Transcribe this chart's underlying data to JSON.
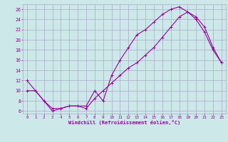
{
  "xlabel": "Windchill (Refroidissement éolien,°C)",
  "bg_color": "#cce8e8",
  "line_color": "#990099",
  "grid_color": "#aaaacc",
  "xlim": [
    -0.5,
    23.5
  ],
  "ylim": [
    5.5,
    27.0
  ],
  "xticks": [
    0,
    1,
    2,
    3,
    4,
    5,
    6,
    7,
    8,
    9,
    10,
    11,
    12,
    13,
    14,
    15,
    16,
    17,
    18,
    19,
    20,
    21,
    22,
    23
  ],
  "yticks": [
    6,
    8,
    10,
    12,
    14,
    16,
    18,
    20,
    22,
    24,
    26
  ],
  "series1_x": [
    0,
    1,
    2,
    3,
    4,
    5,
    6,
    7,
    8,
    9,
    10,
    11,
    12,
    13,
    14,
    15,
    16,
    17,
    18,
    19,
    20,
    21,
    22,
    23
  ],
  "series1_y": [
    12,
    10,
    8,
    6,
    6.5,
    7,
    7,
    7,
    10,
    8,
    13,
    16,
    18.5,
    21,
    22,
    23.5,
    25,
    26,
    26.5,
    25.5,
    24,
    21.5,
    18,
    15.5
  ],
  "series2_x": [
    0,
    1,
    2,
    3,
    4,
    5,
    6,
    7,
    8,
    9,
    10,
    11,
    12,
    13,
    14,
    15,
    16,
    17,
    18,
    19,
    20,
    21,
    22,
    23
  ],
  "series2_y": [
    10,
    10,
    8,
    6.5,
    6.5,
    7,
    7,
    6.5,
    8.5,
    10,
    11.5,
    13,
    14.5,
    15.5,
    17,
    18.5,
    20.5,
    22.5,
    24.5,
    25.5,
    24.5,
    22.5,
    18.5,
    15.5
  ],
  "marker": "+"
}
